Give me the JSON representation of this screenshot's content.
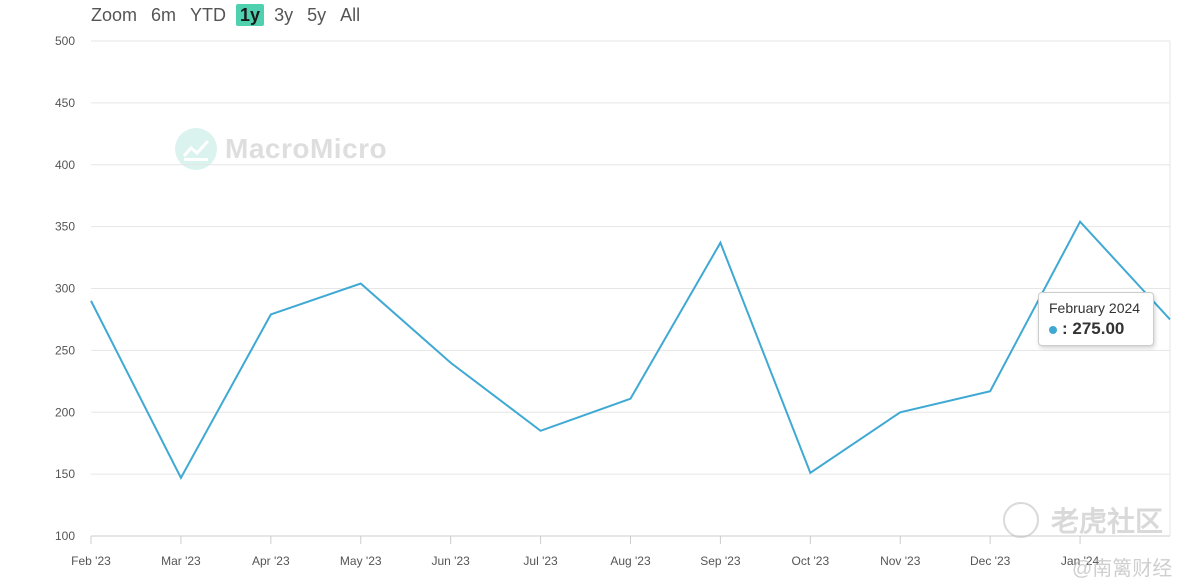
{
  "zoom": {
    "label": "Zoom",
    "options": [
      "6m",
      "YTD",
      "1y",
      "3y",
      "5y",
      "All"
    ],
    "active": "1y"
  },
  "watermark": {
    "text": "MacroMicro"
  },
  "corner_watermark": {
    "text": "老虎社区",
    "sub": "@南篱财经"
  },
  "tooltip": {
    "title": "February 2024",
    "value": ": 275.00",
    "dot_color": "#3fa9d4"
  },
  "chart_data": {
    "type": "line",
    "title": "",
    "xlabel": "",
    "ylabel": "",
    "ylim": [
      100,
      500
    ],
    "yticks": [
      100,
      150,
      200,
      250,
      300,
      350,
      400,
      450,
      500
    ],
    "x_tick_labels": [
      "Feb '23",
      "Mar '23",
      "Apr '23",
      "May '23",
      "Jun '23",
      "Jul '23",
      "Aug '23",
      "Sep '23",
      "Oct '23",
      "Nov '23",
      "Dec '23",
      "Jan '24"
    ],
    "grid": true,
    "line_color": "#3fa9d4",
    "series": [
      {
        "x": [
          "2023-02",
          "2023-03",
          "2023-04",
          "2023-05",
          "2023-06",
          "2023-07",
          "2023-08",
          "2023-09",
          "2023-10",
          "2023-11",
          "2023-12",
          "2024-01",
          "2024-02"
        ],
        "values": [
          290,
          147,
          279,
          304,
          240,
          185,
          211,
          337,
          151,
          200,
          217,
          354,
          275
        ]
      }
    ]
  }
}
